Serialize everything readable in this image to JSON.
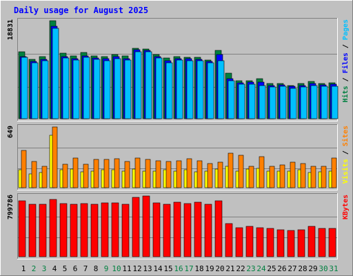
{
  "title": "Daily usage for August 2025",
  "colors": {
    "background": "#c0c0c0",
    "title": "#0000ff",
    "hits": "#008040",
    "files": "#0000ff",
    "pages": "#00c0ff",
    "visits": "#ffff00",
    "sites": "#ff8000",
    "kbytes": "#ff0000",
    "weekend_day_label": "#008040",
    "weekday_label": "#000000",
    "gridline": "#808080"
  },
  "chart_data": [
    {
      "type": "bar",
      "panel": "hits-files-pages",
      "ymax_label": "18831",
      "ylim": [
        0,
        18831
      ],
      "legend_right": [
        {
          "text": "Hits",
          "color": "#008040"
        },
        {
          "text": " / ",
          "color": "#000000"
        },
        {
          "text": "Files",
          "color": "#0000ff"
        },
        {
          "text": " / ",
          "color": "#000000"
        },
        {
          "text": "Pages",
          "color": "#00c0ff"
        }
      ],
      "categories": [
        "1",
        "2",
        "3",
        "4",
        "5",
        "6",
        "7",
        "8",
        "9",
        "10",
        "11",
        "12",
        "13",
        "14",
        "15",
        "16",
        "17",
        "18",
        "19",
        "20",
        "21",
        "22",
        "23",
        "24",
        "25",
        "26",
        "27",
        "28",
        "29",
        "30",
        "31"
      ],
      "series": [
        {
          "name": "Hits",
          "values": [
            12800,
            11400,
            12000,
            18831,
            12600,
            12100,
            12700,
            12100,
            12000,
            12300,
            12100,
            13500,
            13400,
            12300,
            11700,
            11900,
            11800,
            11800,
            11300,
            13100,
            8700,
            7300,
            7300,
            7700,
            6800,
            6800,
            6400,
            6800,
            7100,
            6800,
            6900
          ]
        },
        {
          "name": "Files",
          "values": [
            12000,
            11000,
            11400,
            17800,
            11900,
            11600,
            12100,
            11700,
            11600,
            11900,
            11600,
            13200,
            13100,
            12000,
            11200,
            11600,
            11600,
            11400,
            11000,
            12300,
            7700,
            6900,
            7000,
            7000,
            6400,
            6500,
            6200,
            6400,
            6800,
            6500,
            6600
          ]
        },
        {
          "name": "Pages",
          "values": [
            11800,
            10700,
            11100,
            17400,
            11700,
            11300,
            11800,
            11400,
            11200,
            11600,
            11300,
            12800,
            12900,
            11700,
            10700,
            11300,
            11200,
            11100,
            10700,
            11200,
            7300,
            6600,
            6600,
            6300,
            6100,
            6200,
            5900,
            6100,
            6400,
            6200,
            6200
          ]
        }
      ]
    },
    {
      "type": "bar",
      "panel": "visits-sites",
      "ymax_label": "649",
      "ylim": [
        0,
        649
      ],
      "legend_right": [
        {
          "text": "Visits",
          "color": "#ffff00"
        },
        {
          "text": " / ",
          "color": "#000000"
        },
        {
          "text": "Sites",
          "color": "#ff8000"
        }
      ],
      "categories": [
        "1",
        "2",
        "3",
        "4",
        "5",
        "6",
        "7",
        "8",
        "9",
        "10",
        "11",
        "12",
        "13",
        "14",
        "15",
        "16",
        "17",
        "18",
        "19",
        "20",
        "21",
        "22",
        "23",
        "24",
        "25",
        "26",
        "27",
        "28",
        "29",
        "30",
        "31"
      ],
      "series": [
        {
          "name": "Visits",
          "values": [
            190,
            150,
            160,
            560,
            190,
            200,
            170,
            180,
            190,
            190,
            180,
            200,
            180,
            180,
            190,
            180,
            190,
            170,
            180,
            200,
            230,
            180,
            200,
            210,
            180,
            180,
            180,
            190,
            160,
            170,
            180
          ]
        },
        {
          "name": "Sites",
          "values": [
            400,
            280,
            230,
            649,
            250,
            320,
            250,
            300,
            300,
            310,
            280,
            320,
            300,
            290,
            280,
            290,
            310,
            290,
            260,
            270,
            370,
            350,
            230,
            330,
            230,
            240,
            270,
            260,
            230,
            230,
            320
          ]
        }
      ]
    },
    {
      "type": "bar",
      "panel": "kbytes",
      "ymax_label": "799786",
      "ylim": [
        0,
        799786
      ],
      "legend_right": [
        {
          "text": "KBytes",
          "color": "#ff0000"
        }
      ],
      "categories": [
        "1",
        "2",
        "3",
        "4",
        "5",
        "6",
        "7",
        "8",
        "9",
        "10",
        "11",
        "12",
        "13",
        "14",
        "15",
        "16",
        "17",
        "18",
        "19",
        "20",
        "21",
        "22",
        "23",
        "24",
        "25",
        "26",
        "27",
        "28",
        "29",
        "30",
        "31"
      ],
      "series": [
        {
          "name": "KBytes",
          "values": [
            735000,
            690000,
            695000,
            754000,
            699000,
            693000,
            696000,
            693000,
            708000,
            711000,
            695000,
            782000,
            799786,
            708000,
            691000,
            722000,
            700000,
            722000,
            690000,
            733000,
            440000,
            383000,
            398000,
            380000,
            370000,
            350000,
            348000,
            356000,
            400000,
            370000,
            377000
          ]
        }
      ]
    }
  ],
  "x_labels": [
    "1",
    "2",
    "3",
    "4",
    "5",
    "6",
    "7",
    "8",
    "9",
    "10",
    "11",
    "12",
    "13",
    "14",
    "15",
    "16",
    "17",
    "18",
    "19",
    "20",
    "21",
    "22",
    "23",
    "24",
    "25",
    "26",
    "27",
    "28",
    "29",
    "30",
    "31"
  ],
  "weekend_days": [
    2,
    3,
    9,
    10,
    16,
    17,
    23,
    24,
    30,
    31
  ]
}
